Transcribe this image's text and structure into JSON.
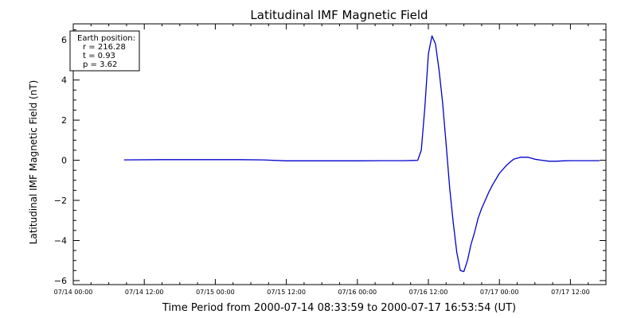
{
  "chart_data": {
    "type": "line",
    "title": "Latitudinal IMF Magnetic Field",
    "xlabel": "Time Period from 2000-07-14 08:33:59 to 2000-07-17 16:53:54 (UT)",
    "ylabel": "Latitudinal IMF Magnetic Field (nT)",
    "x_unit": "hours since 07/14 00:00",
    "xlim": [
      0,
      90
    ],
    "ylim": [
      -6.2,
      6.8
    ],
    "x_ticks": [
      {
        "value": 0,
        "label": "07/14 00:00"
      },
      {
        "value": 12,
        "label": "07/14 12:00"
      },
      {
        "value": 24,
        "label": "07/15 00:00"
      },
      {
        "value": 36,
        "label": "07/15 12:00"
      },
      {
        "value": 48,
        "label": "07/16 00:00"
      },
      {
        "value": 60,
        "label": "07/16 12:00"
      },
      {
        "value": 72,
        "label": "07/17 00:00"
      },
      {
        "value": 84,
        "label": "07/17 12:00"
      }
    ],
    "y_ticks": [
      {
        "value": -6,
        "label": "−6"
      },
      {
        "value": -4,
        "label": "−4"
      },
      {
        "value": -2,
        "label": "−2"
      },
      {
        "value": 0,
        "label": "0"
      },
      {
        "value": 2,
        "label": "2"
      },
      {
        "value": 4,
        "label": "4"
      },
      {
        "value": 6,
        "label": "6"
      }
    ],
    "grid": false,
    "line_color": "#0000cc",
    "series": [
      {
        "x": [
          8.57,
          15,
          20,
          24,
          28,
          32,
          36,
          40,
          44,
          48,
          52,
          56,
          57.6,
          58.2,
          58.8,
          59.4,
          60,
          60.6,
          61.2,
          61.8,
          62.4,
          63,
          63.6,
          64.2,
          64.8,
          65.4,
          66,
          66.6,
          67.2,
          67.8,
          68.4,
          69,
          69.6,
          70.2,
          70.8,
          72,
          73.2,
          74.4,
          75.6,
          76.8,
          78,
          79.2,
          80.4,
          81.6,
          82.8,
          84,
          85.2,
          86.4,
          88.9
        ],
        "y": [
          0.02,
          0.03,
          0.03,
          0.03,
          0.03,
          0.02,
          -0.03,
          -0.03,
          -0.03,
          -0.03,
          -0.02,
          -0.02,
          -0.01,
          0.0,
          0.5,
          2.6,
          5.3,
          6.2,
          5.8,
          4.5,
          2.9,
          0.8,
          -1.4,
          -3.1,
          -4.6,
          -5.5,
          -5.55,
          -5.0,
          -4.2,
          -3.6,
          -2.9,
          -2.4,
          -2.0,
          -1.6,
          -1.25,
          -0.65,
          -0.25,
          0.05,
          0.15,
          0.15,
          0.05,
          0.0,
          -0.05,
          -0.05,
          -0.03,
          -0.02,
          -0.02,
          -0.02,
          -0.02
        ]
      }
    ]
  },
  "info_box": {
    "heading": "Earth position:",
    "r": "r = 216.28",
    "t": "t = 0.93",
    "p": "p = 3.62"
  }
}
